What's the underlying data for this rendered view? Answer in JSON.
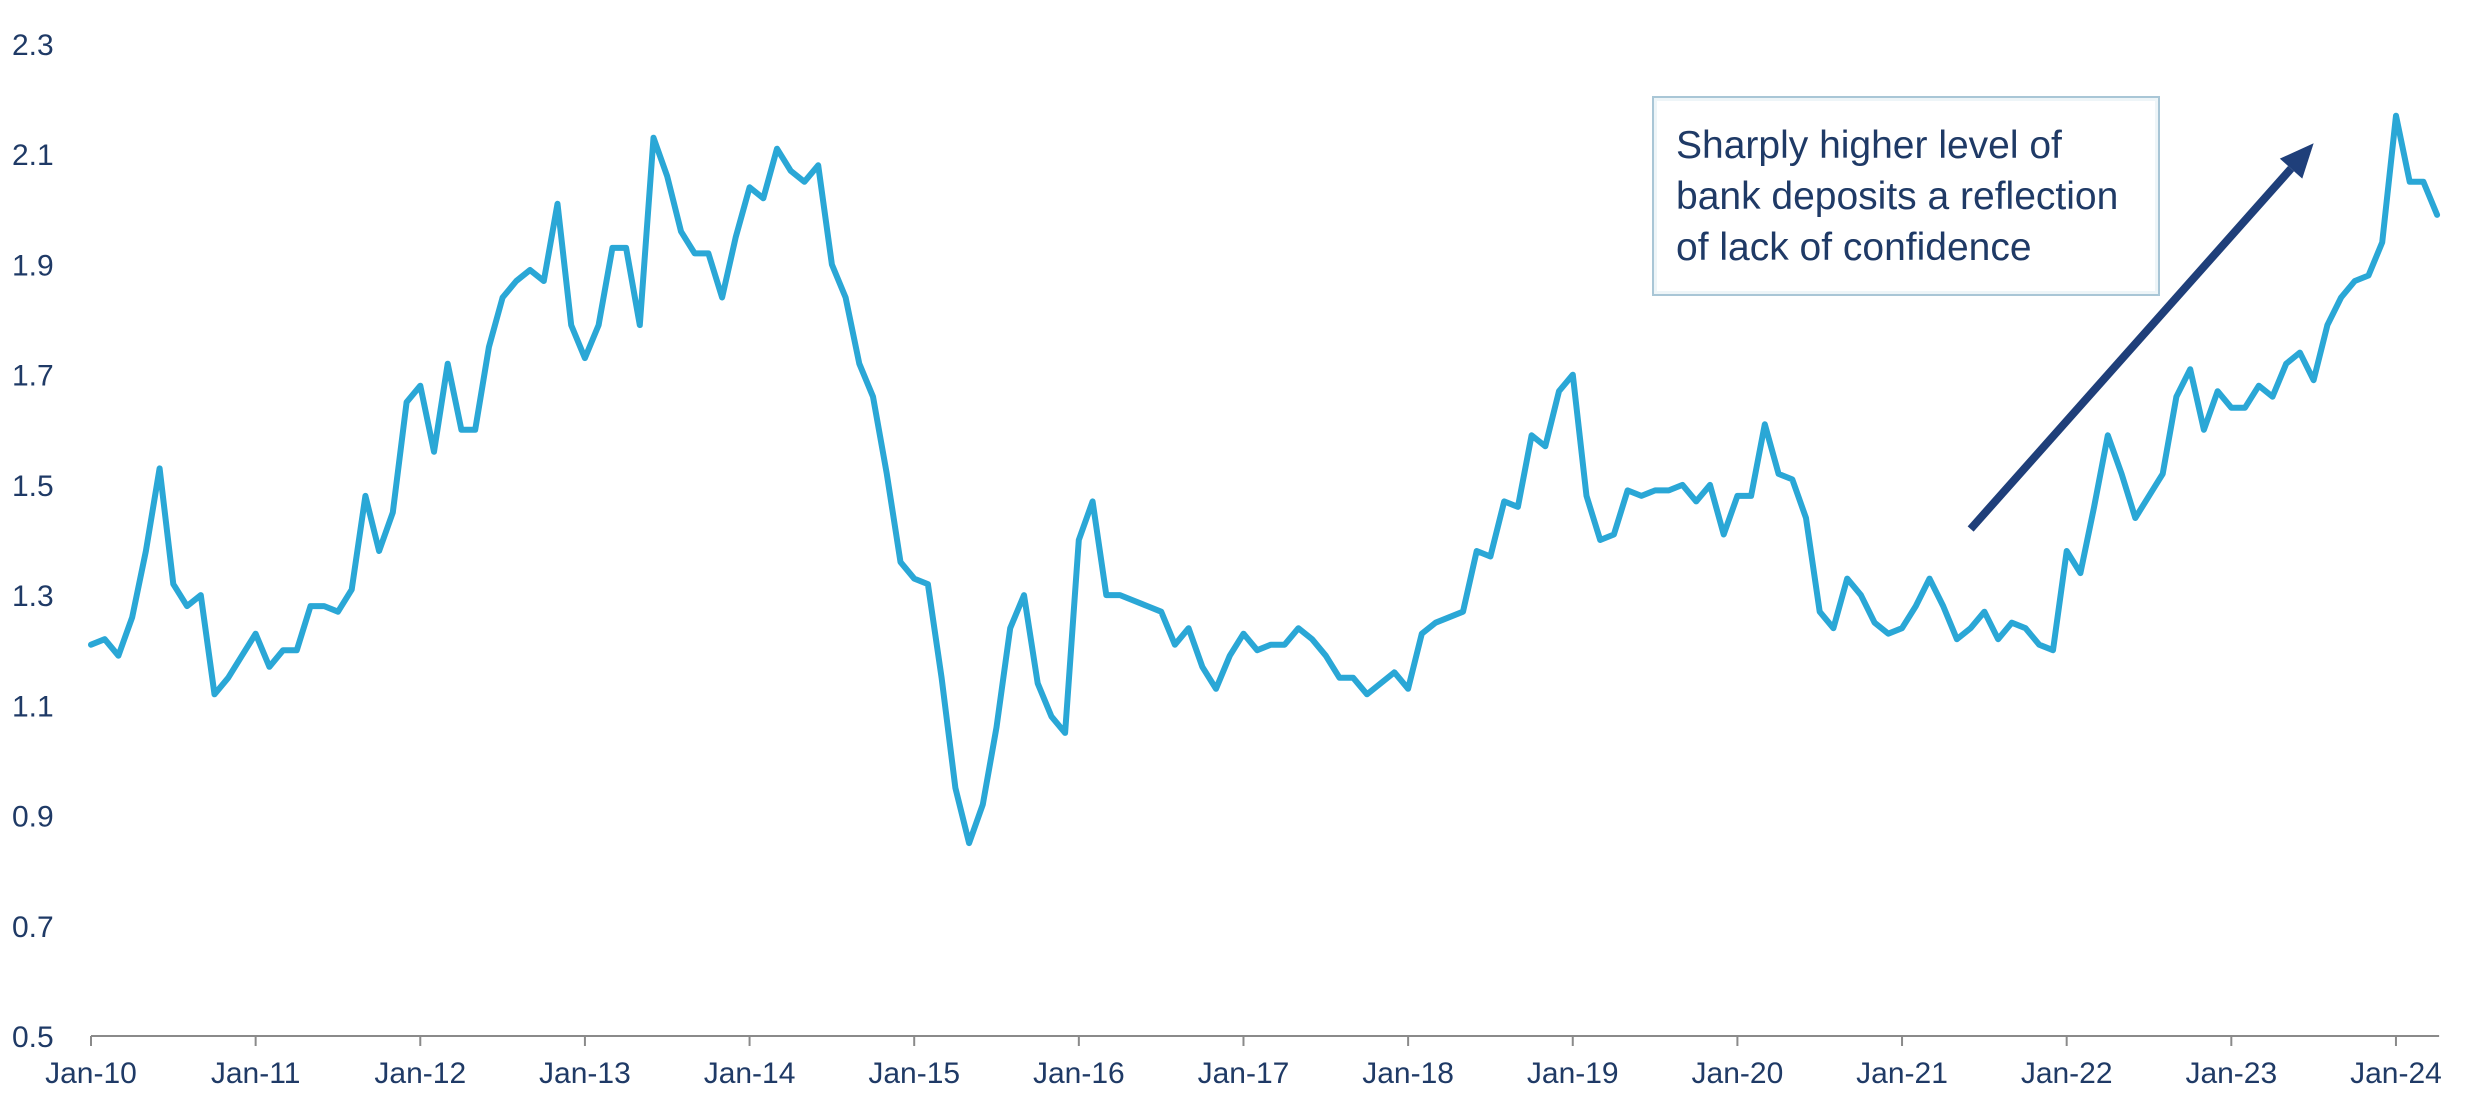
{
  "chart_data": {
    "type": "line",
    "title": "",
    "xlabel": "",
    "ylabel": "",
    "ylim": [
      0.5,
      2.3
    ],
    "yticks": [
      "0.5",
      "0.7",
      "0.9",
      "1.1",
      "1.3",
      "1.5",
      "1.7",
      "1.9",
      "2.1",
      "2.3"
    ],
    "xticks": [
      "Jan-10",
      "Jan-11",
      "Jan-12",
      "Jan-13",
      "Jan-14",
      "Jan-15",
      "Jan-16",
      "Jan-17",
      "Jan-18",
      "Jan-19",
      "Jan-20",
      "Jan-21",
      "Jan-22",
      "Jan-23",
      "Jan-24"
    ],
    "x_start": "Jan-10",
    "x_step": "month",
    "grid": false,
    "legend": "none",
    "series": [
      {
        "color": "#2aa7d6",
        "values": [
          1.21,
          1.22,
          1.19,
          1.26,
          1.38,
          1.53,
          1.32,
          1.28,
          1.3,
          1.12,
          1.15,
          1.19,
          1.23,
          1.17,
          1.2,
          1.2,
          1.28,
          1.28,
          1.27,
          1.31,
          1.48,
          1.38,
          1.45,
          1.65,
          1.68,
          1.56,
          1.72,
          1.6,
          1.6,
          1.75,
          1.84,
          1.87,
          1.89,
          1.87,
          2.01,
          1.79,
          1.73,
          1.79,
          1.93,
          1.93,
          1.79,
          2.13,
          2.06,
          1.96,
          1.92,
          1.92,
          1.84,
          1.95,
          2.04,
          2.02,
          2.11,
          2.07,
          2.05,
          2.08,
          1.9,
          1.84,
          1.72,
          1.66,
          1.52,
          1.36,
          1.33,
          1.32,
          1.15,
          0.95,
          0.85,
          0.92,
          1.06,
          1.24,
          1.3,
          1.14,
          1.08,
          1.05,
          1.4,
          1.47,
          1.3,
          1.3,
          1.29,
          1.28,
          1.27,
          1.21,
          1.24,
          1.17,
          1.13,
          1.19,
          1.23,
          1.2,
          1.21,
          1.21,
          1.24,
          1.22,
          1.19,
          1.15,
          1.15,
          1.12,
          1.14,
          1.16,
          1.13,
          1.23,
          1.25,
          1.26,
          1.27,
          1.38,
          1.37,
          1.47,
          1.46,
          1.59,
          1.57,
          1.67,
          1.7,
          1.48,
          1.4,
          1.41,
          1.49,
          1.48,
          1.49,
          1.49,
          1.5,
          1.47,
          1.5,
          1.41,
          1.48,
          1.48,
          1.61,
          1.52,
          1.51,
          1.44,
          1.27,
          1.24,
          1.33,
          1.3,
          1.25,
          1.23,
          1.24,
          1.28,
          1.33,
          1.28,
          1.22,
          1.24,
          1.27,
          1.22,
          1.25,
          1.24,
          1.21,
          1.2,
          1.38,
          1.34,
          1.46,
          1.59,
          1.52,
          1.44,
          1.48,
          1.52,
          1.66,
          1.71,
          1.6,
          1.67,
          1.64,
          1.64,
          1.68,
          1.66,
          1.72,
          1.74,
          1.69,
          1.79,
          1.84,
          1.87,
          1.88,
          1.94,
          2.17,
          2.05,
          2.05,
          1.99
        ]
      }
    ],
    "annotation": {
      "text": "Sharply higher level of bank deposits a reflection of lack of confidence",
      "arrow_color": "#1f3f7a",
      "arrow_from": [
        "Jun-21",
        1.42
      ],
      "arrow_to": [
        "Jul-23",
        2.12
      ]
    }
  }
}
